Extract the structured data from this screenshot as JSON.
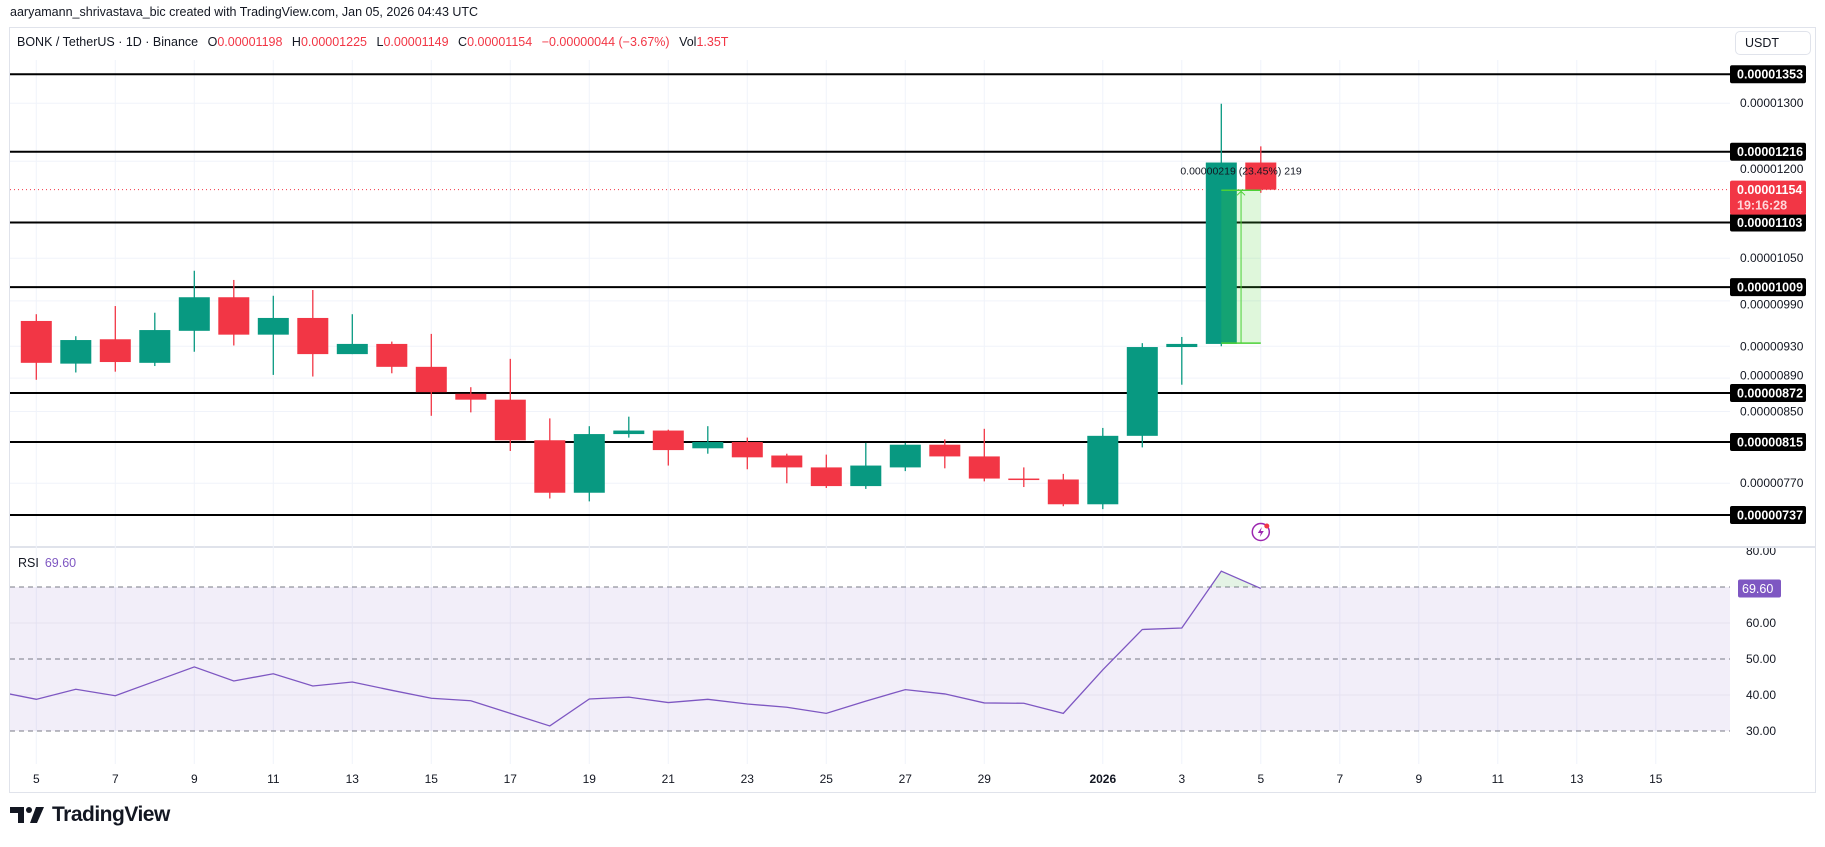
{
  "header": {
    "credit": "aaryamann_shrivastava_bic created with TradingView.com, Jan 05, 2026 04:43 UTC"
  },
  "legend": {
    "symbol": "BONK / TetherUS · 1D · Binance",
    "o_label": "O",
    "o": "0.00001198",
    "h_label": "H",
    "h": "0.00001225",
    "l_label": "L",
    "l": "0.00001149",
    "c_label": "C",
    "c": "0.00001154",
    "change": "−0.00000044 (−3.67%)",
    "vol_label": "Vol",
    "vol": "1.35T"
  },
  "currency_button": "USDT",
  "rsi_legend": {
    "label": "RSI",
    "value": "69.60"
  },
  "logo": {
    "text": "TradingView"
  },
  "colors": {
    "up": "#089981",
    "down": "#F23645",
    "rsi": "#7E57C2",
    "level_line": "#000000",
    "measure": "#4CD137",
    "grid": "#F0F3FA",
    "alert_icon": "#9C27B0"
  },
  "chart_data": {
    "type": "candlestick",
    "price_scale": "log",
    "grid": true,
    "columns": [
      "date",
      "open",
      "high",
      "low",
      "close"
    ],
    "candles": [
      [
        "2025-12-05",
        9.63e-06,
        9.72e-06,
        8.88e-06,
        9.09e-06
      ],
      [
        "2025-12-06",
        9.08e-06,
        9.43e-06,
        8.97e-06,
        9.38e-06
      ],
      [
        "2025-12-07",
        9.39e-06,
        9.83e-06,
        8.98e-06,
        9.1e-06
      ],
      [
        "2025-12-08",
        9.09e-06,
        9.74e-06,
        9.05e-06,
        9.51e-06
      ],
      [
        "2025-12-09",
        9.5e-06,
        1.032e-05,
        9.23e-06,
        9.95e-06
      ],
      [
        "2025-12-10",
        9.95e-06,
        1.019e-05,
        9.31e-06,
        9.45e-06
      ],
      [
        "2025-12-11",
        9.45e-06,
        9.97e-06,
        8.94e-06,
        9.67e-06
      ],
      [
        "2025-12-12",
        9.67e-06,
        1.005e-05,
        8.92e-06,
        9.2e-06
      ],
      [
        "2025-12-13",
        9.2e-06,
        9.72e-06,
        9.2e-06,
        9.33e-06
      ],
      [
        "2025-12-14",
        9.33e-06,
        9.36e-06,
        8.96e-06,
        9.04e-06
      ],
      [
        "2025-12-15",
        9.04e-06,
        9.46e-06,
        8.45e-06,
        8.73e-06
      ],
      [
        "2025-12-16",
        8.71e-06,
        8.79e-06,
        8.49e-06,
        8.64e-06
      ],
      [
        "2025-12-17",
        8.64e-06,
        9.14e-06,
        8.05e-06,
        8.17e-06
      ],
      [
        "2025-12-18",
        8.17e-06,
        8.42e-06,
        7.54e-06,
        7.6e-06
      ],
      [
        "2025-12-19",
        7.6e-06,
        8.33e-06,
        7.51e-06,
        8.24e-06
      ],
      [
        "2025-12-20",
        8.24e-06,
        8.44e-06,
        8.2e-06,
        8.28e-06
      ],
      [
        "2025-12-21",
        8.28e-06,
        8.29e-06,
        7.89e-06,
        8.06e-06
      ],
      [
        "2025-12-22",
        8.08e-06,
        8.33e-06,
        8.02e-06,
        8.15e-06
      ],
      [
        "2025-12-23",
        8.15e-06,
        8.2e-06,
        7.85e-06,
        7.98e-06
      ],
      [
        "2025-12-24",
        8e-06,
        8.02e-06,
        7.7e-06,
        7.87e-06
      ],
      [
        "2025-12-25",
        7.87e-06,
        8.01e-06,
        7.65e-06,
        7.67e-06
      ],
      [
        "2025-12-26",
        7.67e-06,
        8.14e-06,
        7.64e-06,
        7.89e-06
      ],
      [
        "2025-12-27",
        7.87e-06,
        8.14e-06,
        7.83e-06,
        8.12e-06
      ],
      [
        "2025-12-28",
        8.12e-06,
        8.18e-06,
        7.86e-06,
        7.99e-06
      ],
      [
        "2025-12-29",
        7.99e-06,
        8.3e-06,
        7.72e-06,
        7.75e-06
      ],
      [
        "2025-12-30",
        7.75e-06,
        7.87e-06,
        7.66e-06,
        7.74e-06
      ],
      [
        "2025-12-31",
        7.74e-06,
        7.8e-06,
        7.46e-06,
        7.48e-06
      ],
      [
        "2026-01-01",
        7.48e-06,
        8.31e-06,
        7.43e-06,
        8.22e-06
      ],
      [
        "2026-01-02",
        8.22e-06,
        9.34e-06,
        8.09e-06,
        9.29e-06
      ],
      [
        "2026-01-03",
        9.29e-06,
        9.42e-06,
        8.82e-06,
        9.33e-06
      ],
      [
        "2026-01-04",
        9.33e-06,
        1.299e-05,
        9.3e-06,
        1.198e-05
      ],
      [
        "2026-01-05",
        1.198e-05,
        1.225e-05,
        1.149e-05,
        1.154e-05
      ]
    ],
    "x_tick_labels": [
      {
        "label": "5",
        "date": "2025-12-05"
      },
      {
        "label": "7",
        "date": "2025-12-07"
      },
      {
        "label": "9",
        "date": "2025-12-09"
      },
      {
        "label": "11",
        "date": "2025-12-11"
      },
      {
        "label": "13",
        "date": "2025-12-13"
      },
      {
        "label": "15",
        "date": "2025-12-15"
      },
      {
        "label": "17",
        "date": "2025-12-17"
      },
      {
        "label": "19",
        "date": "2025-12-19"
      },
      {
        "label": "21",
        "date": "2025-12-21"
      },
      {
        "label": "23",
        "date": "2025-12-23"
      },
      {
        "label": "25",
        "date": "2025-12-25"
      },
      {
        "label": "27",
        "date": "2025-12-27"
      },
      {
        "label": "29",
        "date": "2025-12-29"
      },
      {
        "label": "2026",
        "date": "2026-01-01"
      },
      {
        "label": "3",
        "date": "2026-01-03"
      },
      {
        "label": "5",
        "date": "2026-01-05"
      },
      {
        "label": "7",
        "date": "2026-01-07"
      },
      {
        "label": "9",
        "date": "2026-01-09"
      },
      {
        "label": "11",
        "date": "2026-01-11"
      },
      {
        "label": "13",
        "date": "2026-01-13"
      },
      {
        "label": "15",
        "date": "2026-01-15"
      }
    ],
    "y_tick_labels": [
      "0.00001300",
      "0.00001200",
      "0.00001050",
      "0.00000990",
      "0.00000930",
      "0.00000890",
      "0.00000850",
      "0.00000770"
    ],
    "horizontal_levels": [
      "0.00001353",
      "0.00001216",
      "0.00001103",
      "0.00001009",
      "0.00000872",
      "0.00000815",
      "0.00000737"
    ],
    "last_price": {
      "value": "0.00001154",
      "countdown": "19:16:28"
    },
    "measure": {
      "label": "0.00000219 (23.45%) 219",
      "from_price": 9.34e-06,
      "to_price": 1.153e-05,
      "from_date": "2026-01-04",
      "to_date": "2026-01-05"
    },
    "rsi": {
      "start_date": "2025-12-04",
      "values": [
        41.0,
        38.8,
        41.6,
        39.8,
        43.8,
        47.8,
        43.9,
        45.9,
        42.5,
        43.6,
        41.3,
        39.1,
        38.4,
        34.9,
        31.4,
        38.9,
        39.4,
        37.9,
        38.8,
        37.5,
        36.6,
        34.9,
        38.3,
        41.5,
        40.3,
        37.8,
        37.7,
        34.9,
        47.0,
        58.2,
        58.6,
        74.4,
        69.6
      ],
      "current": "69.60",
      "dashed_levels": [
        70,
        50,
        30
      ],
      "band": [
        30,
        70
      ],
      "y_tick_labels": [
        "80.00",
        "60.00",
        "50.00",
        "40.00",
        "30.00"
      ]
    }
  }
}
